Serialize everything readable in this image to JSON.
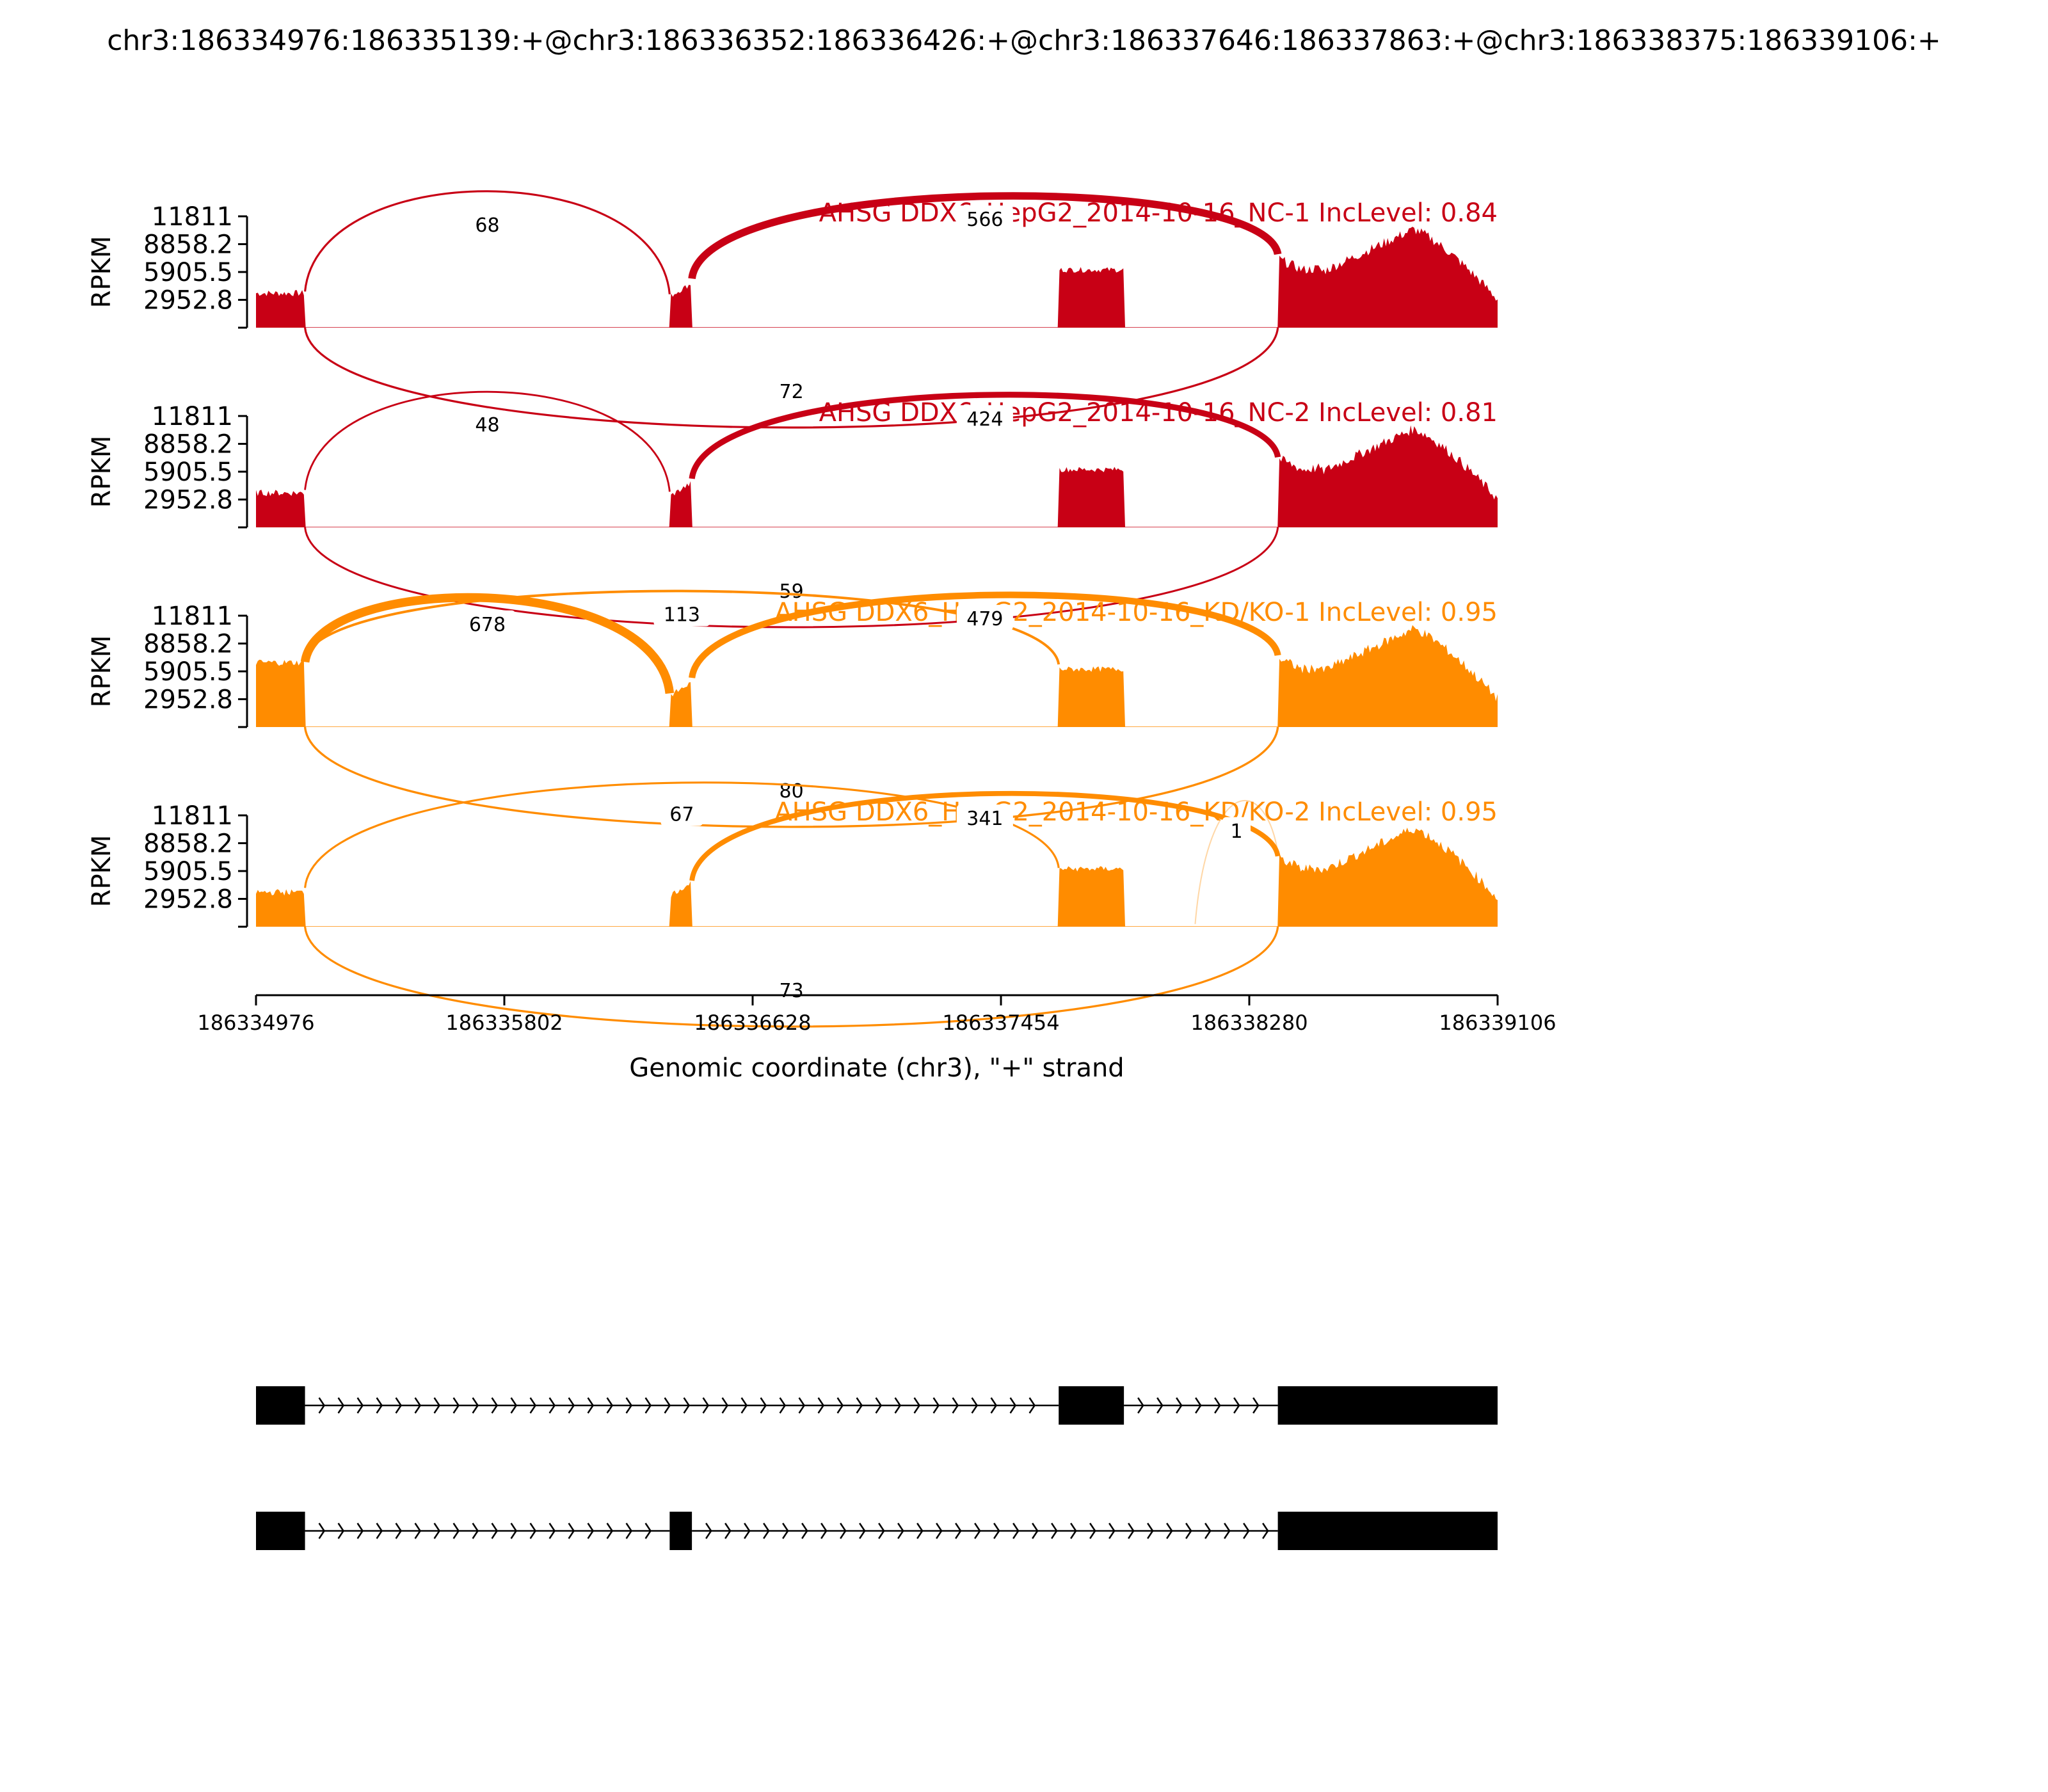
{
  "chart_data": {
    "type": "area",
    "title": "chr3:186334976:186335139:+@chr3:186336352:186336426:+@chr3:186337646:186337863:+@chr3:186338375:186339106:+",
    "xlabel": "Genomic coordinate (chr3), \"+\" strand",
    "ylabel": "RPKM",
    "xlim": [
      186334976,
      186339106
    ],
    "ylim": [
      0,
      11811
    ],
    "x_ticks": [
      "186334976",
      "186335802",
      "186336628",
      "186337454",
      "186338280",
      "186339106"
    ],
    "y_ticks": [
      "11811",
      "8858.2",
      "5905.5",
      "2952.8"
    ],
    "exons": [
      [
        186334976,
        186335139
      ],
      [
        186336352,
        186336426
      ],
      [
        186337646,
        186337863
      ],
      [
        186338375,
        186339106
      ]
    ],
    "panels": [
      {
        "label": "AHSG DDX6_HepG2_2014-10-16_NC-1 IncLevel: 0.84",
        "color": "#c80015",
        "junctions": [
          {
            "from": 186335139,
            "to": 186336352,
            "count": "68",
            "side": "above"
          },
          {
            "from": 186336426,
            "to": 186338375,
            "count": "566",
            "side": "above"
          },
          {
            "from": 186335139,
            "to": 186338375,
            "count": "72",
            "side": "below"
          }
        ]
      },
      {
        "label": "AHSG DDX6_HepG2_2014-10-16_NC-2 IncLevel: 0.81",
        "color": "#c80015",
        "junctions": [
          {
            "from": 186335139,
            "to": 186336352,
            "count": "48",
            "side": "above"
          },
          {
            "from": 186336426,
            "to": 186338375,
            "count": "424",
            "side": "above"
          },
          {
            "from": 186335139,
            "to": 186338375,
            "count": "59",
            "side": "below"
          }
        ]
      },
      {
        "label": "AHSG DDX6_HepG2_2014-10-16_KD/KO-1 IncLevel: 0.95",
        "color": "#ff8c00",
        "junctions": [
          {
            "from": 186335139,
            "to": 186336352,
            "count": "678",
            "side": "above"
          },
          {
            "from": 186335139,
            "to": 186337646,
            "count": "113",
            "side": "above"
          },
          {
            "from": 186336426,
            "to": 186338375,
            "count": "479",
            "side": "above"
          },
          {
            "from": 186335139,
            "to": 186338375,
            "count": "80",
            "side": "below"
          }
        ]
      },
      {
        "label": "AHSG DDX6_HepG2_2014-10-16_KD/KO-2 IncLevel: 0.95",
        "color": "#ff8c00",
        "junctions": [
          {
            "from": 186335139,
            "to": 186337646,
            "count": "67",
            "side": "above"
          },
          {
            "from": 186336426,
            "to": 186338375,
            "count": "341",
            "side": "above"
          },
          {
            "from": 186338100,
            "to": 186338375,
            "count": "1",
            "side": "above"
          },
          {
            "from": 186335139,
            "to": 186338375,
            "count": "73",
            "side": "below"
          }
        ]
      }
    ],
    "isoforms": [
      {
        "exons": [
          [
            186334976,
            186335139
          ],
          [
            186337646,
            186337863
          ],
          [
            186338375,
            186339106
          ]
        ]
      },
      {
        "exons": [
          [
            186334976,
            186335139
          ],
          [
            186336352,
            186336426
          ],
          [
            186338375,
            186339106
          ]
        ]
      }
    ]
  }
}
